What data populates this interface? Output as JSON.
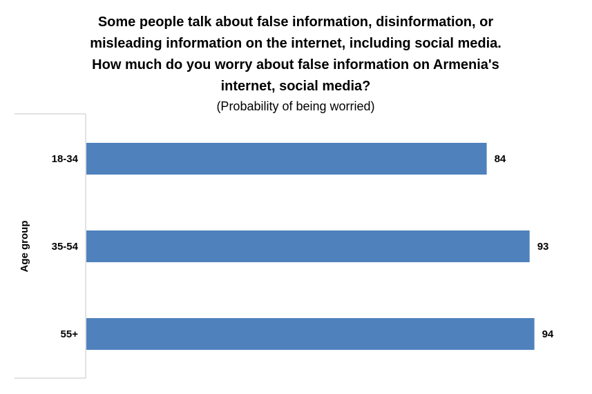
{
  "chart_data": {
    "type": "bar",
    "orientation": "horizontal",
    "title": "Some people talk about false information, disinformation, or misleading information on the internet, including social media. How much do you worry about false information on Armenia's internet, social media?",
    "title_lines": [
      "Some people talk about false information, disinformation, or",
      "misleading information on the internet, including social media.",
      "How much do you worry about false information on Armenia's",
      "internet, social media?"
    ],
    "subtitle": "(Probability of being worried)",
    "ylabel": "Age group",
    "xlabel": "",
    "categories": [
      "18-34",
      "35-54",
      "55+"
    ],
    "values": [
      84,
      93,
      94
    ],
    "data_labels": [
      "84",
      "93",
      "94"
    ],
    "xlim": [
      0,
      100
    ],
    "bar_color": "#4F81BD",
    "axis_color": "#D9D9D9",
    "grid": false,
    "legend": "none"
  }
}
